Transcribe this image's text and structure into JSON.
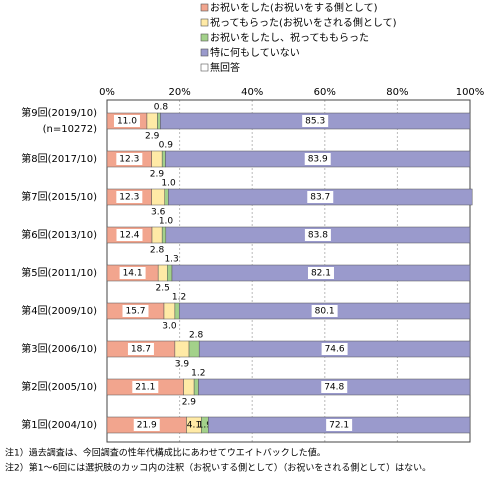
{
  "chart_data": {
    "type": "stacked_bar_horizontal",
    "categories": [
      "第9回(2019/10)",
      "第8回(2017/10)",
      "第7回(2015/10)",
      "第6回(2013/10)",
      "第5回(2011/10)",
      "第4回(2009/10)",
      "第3回(2006/10)",
      "第2回(2005/10)",
      "第1回(2004/10)"
    ],
    "category_note": "(n=10272)",
    "series": [
      {
        "name": "お祝いをした(お祝いをする側として)",
        "color": "#f2a58e",
        "values": [
          11.0,
          12.3,
          12.3,
          12.4,
          14.1,
          15.7,
          18.7,
          21.1,
          21.9
        ],
        "value_labels": [
          "11.0",
          "12.3",
          "12.3",
          "12.4",
          "14.1",
          "15.7",
          "18.7",
          "21.1",
          "21.9"
        ]
      },
      {
        "name": "祝ってもらった(お祝いをされる側として)",
        "color": "#ffeaa6",
        "values": [
          2.9,
          2.9,
          3.6,
          2.8,
          2.5,
          3.0,
          3.9,
          2.9,
          4.1
        ],
        "value_labels": [
          "2.9",
          "2.9",
          "3.6",
          "2.8",
          "2.5",
          "3.0",
          "3.9",
          "2.9",
          "4.1"
        ]
      },
      {
        "name": "お祝いをしたし、祝ってももらった",
        "color": "#a3d18a",
        "values": [
          0.8,
          0.9,
          1.0,
          1.0,
          1.3,
          1.2,
          2.8,
          1.2,
          1.9
        ],
        "value_labels": [
          "0.8",
          "0.9",
          "1.0",
          "1.0",
          "1.3",
          "1.2",
          "2.8",
          "1.2",
          "1.9"
        ]
      },
      {
        "name": "特に何もしていない",
        "color": "#9a9acc",
        "values": [
          85.3,
          83.9,
          83.7,
          83.8,
          82.1,
          80.1,
          74.6,
          74.8,
          72.1
        ],
        "value_labels": [
          "85.3",
          "83.9",
          "83.7",
          "83.8",
          "82.1",
          "80.1",
          "74.6",
          "74.8",
          "72.1"
        ]
      },
      {
        "name": "無回答",
        "color": "#ffffff",
        "values": [
          null,
          null,
          null,
          null,
          null,
          null,
          null,
          null,
          null
        ]
      }
    ],
    "xlim": [
      0,
      100
    ],
    "xticks": [
      {
        "value": 0,
        "label": "0%"
      },
      {
        "value": 20,
        "label": "20%"
      },
      {
        "value": 40,
        "label": "40%"
      },
      {
        "value": 60,
        "label": "60%"
      },
      {
        "value": 80,
        "label": "80%"
      },
      {
        "value": 100,
        "label": "100%"
      }
    ],
    "notes": [
      "注1）過去調査は、今回調査の性年代構成比にあわせてウエイトバックした値。",
      "注2）第1～6回には選択肢のカッコ内の注釈（お祝いする側として）（お祝いをされる側として）はない。"
    ]
  }
}
